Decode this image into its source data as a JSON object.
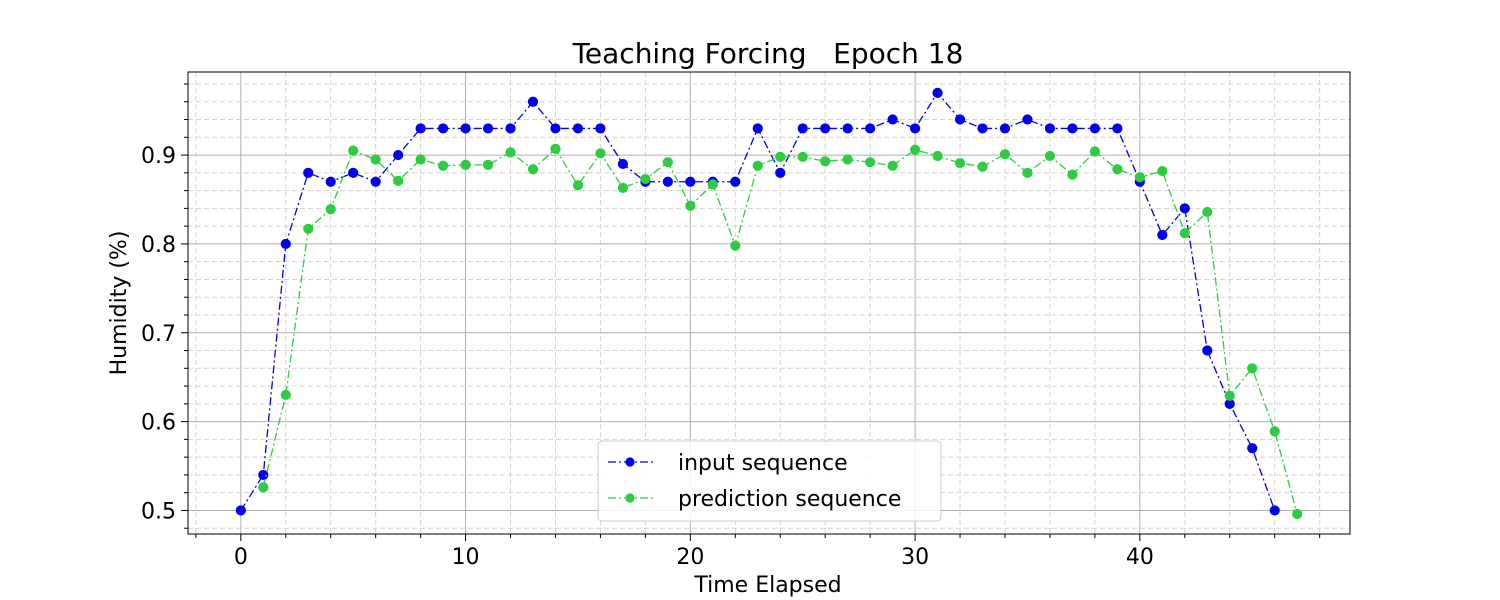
{
  "chart_data": {
    "type": "line",
    "title": "Teaching Forcing   Epoch 18",
    "xlabel": "Time Elapsed",
    "ylabel": "Humidity (%)",
    "xlim": [
      -2.35,
      49.35
    ],
    "ylim": [
      0.4735,
      0.9935
    ],
    "xticks": [
      0,
      10,
      20,
      30,
      40
    ],
    "xtick_labels": [
      "0",
      "10",
      "20",
      "30",
      "40"
    ],
    "yticks": [
      0.5,
      0.6,
      0.7,
      0.8,
      0.9
    ],
    "ytick_labels": [
      "0.5",
      "0.6",
      "0.7",
      "0.8",
      "0.9"
    ],
    "x_minor_step": 2,
    "y_minor_step": 0.02,
    "grid": true,
    "legend_position": "bottom-center",
    "series": [
      {
        "name": "input sequence",
        "color": "#0000ee",
        "line_style": "dash-dot",
        "marker": "circle",
        "x": [
          0,
          1,
          2,
          3,
          4,
          5,
          6,
          7,
          8,
          9,
          10,
          11,
          12,
          13,
          14,
          15,
          16,
          17,
          18,
          19,
          20,
          21,
          22,
          23,
          24,
          25,
          26,
          27,
          28,
          29,
          30,
          31,
          32,
          33,
          34,
          35,
          36,
          37,
          38,
          39,
          40,
          41,
          42,
          43,
          44,
          45,
          46
        ],
        "values": [
          0.5,
          0.54,
          0.8,
          0.88,
          0.87,
          0.88,
          0.87,
          0.9,
          0.93,
          0.93,
          0.93,
          0.93,
          0.93,
          0.96,
          0.93,
          0.93,
          0.93,
          0.89,
          0.87,
          0.87,
          0.87,
          0.87,
          0.87,
          0.93,
          0.88,
          0.93,
          0.93,
          0.93,
          0.93,
          0.94,
          0.93,
          0.97,
          0.94,
          0.93,
          0.93,
          0.94,
          0.93,
          0.93,
          0.93,
          0.93,
          0.87,
          0.81,
          0.84,
          0.68,
          0.62,
          0.57,
          0.5
        ]
      },
      {
        "name": "prediction sequence",
        "color": "#2ecc40",
        "line_style": "dash-dot",
        "marker": "circle",
        "x": [
          1,
          2,
          3,
          4,
          5,
          6,
          7,
          8,
          9,
          10,
          11,
          12,
          13,
          14,
          15,
          16,
          17,
          18,
          19,
          20,
          21,
          22,
          23,
          24,
          25,
          26,
          27,
          28,
          29,
          30,
          31,
          32,
          33,
          34,
          35,
          36,
          37,
          38,
          39,
          40,
          41,
          42,
          43,
          44,
          45,
          46,
          47
        ],
        "values": [
          0.526,
          0.63,
          0.817,
          0.839,
          0.905,
          0.895,
          0.871,
          0.895,
          0.888,
          0.889,
          0.889,
          0.903,
          0.884,
          0.907,
          0.866,
          0.902,
          0.863,
          0.873,
          0.892,
          0.843,
          0.867,
          0.798,
          0.888,
          0.898,
          0.898,
          0.893,
          0.895,
          0.892,
          0.888,
          0.906,
          0.899,
          0.891,
          0.887,
          0.901,
          0.88,
          0.899,
          0.878,
          0.904,
          0.884,
          0.875,
          0.882,
          0.812,
          0.836,
          0.629,
          0.66,
          0.589,
          0.496
        ]
      }
    ]
  }
}
